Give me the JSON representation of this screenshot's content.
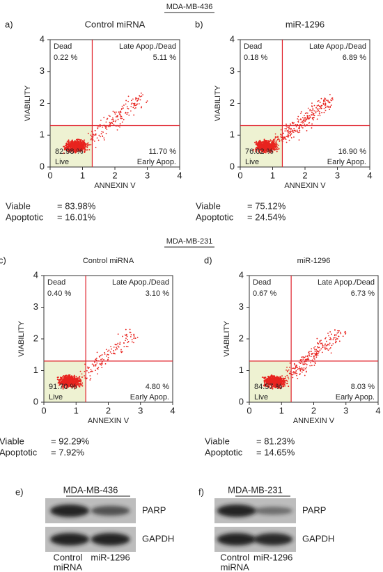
{
  "axis_ticks": [
    0,
    1,
    2,
    3,
    4
  ],
  "x_label": "ANNEXIN V",
  "y_label": "VIABILITY",
  "sections": [
    {
      "title": "MDA-MB-436",
      "panels": [
        {
          "letter": "a)",
          "title": "Control miRNA",
          "dead": "Dead",
          "dead_value": "0.22 %",
          "late": "Late Apop./Dead",
          "late_value": "5.11 %",
          "live": "Live",
          "live_value": "82.98 %",
          "early": "Early Apop.",
          "early_value": "11.70 %",
          "stats": [
            {
              "label": "Viable",
              "value": "= 83.98%"
            },
            {
              "label": "Apoptotic",
              "value": "= 16.01%"
            }
          ]
        },
        {
          "letter": "b)",
          "title": "miR-1296",
          "dead": "Dead",
          "dead_value": "0.18 %",
          "late": "Late Apop./Dead",
          "late_value": "6.89 %",
          "live": "Live",
          "live_value": "76.02 %",
          "early": "Early Apop.",
          "early_value": "16.90 %",
          "stats": [
            {
              "label": "Viable",
              "value": "= 75.12%"
            },
            {
              "label": "Apoptotic",
              "value": "= 24.54%"
            }
          ]
        }
      ]
    },
    {
      "title": "MDA-MB-231",
      "panels": [
        {
          "letter": "c)",
          "title": "Control miRNA",
          "dead": "Dead",
          "dead_value": "0.40 %",
          "late": "Late Apop./Dead",
          "late_value": "3.10 %",
          "live": "Live",
          "live_value": "91.70 %",
          "early": "Early Apop.",
          "early_value": "4.80 %",
          "stats": [
            {
              "label": "Viable",
              "value": "= 92.29%"
            },
            {
              "label": "Apoptotic",
              "value": "= 7.92%"
            }
          ]
        },
        {
          "letter": "d)",
          "title": "miR-1296",
          "dead": "Dead",
          "dead_value": "0.67 %",
          "late": "Late Apop./Dead",
          "late_value": "6.73 %",
          "live": "Live",
          "live_value": "84.57 %",
          "early": "Early Apop.",
          "early_value": "8.03 %",
          "stats": [
            {
              "label": "Viable",
              "value": "= 81.23%"
            },
            {
              "label": "Apoptotic",
              "value": "= 14.65%"
            }
          ]
        }
      ]
    }
  ],
  "blots": [
    {
      "letter": "e)",
      "title": "MDA-MB-436",
      "proteins": [
        "PARP",
        "GAPDH"
      ],
      "lanes": [
        [
          "Control",
          "miRNA"
        ],
        [
          "miR-1296"
        ]
      ]
    },
    {
      "letter": "f)",
      "title": "MDA-MB-231",
      "proteins": [
        "PARP",
        "GAPDH"
      ],
      "lanes": [
        [
          "Control",
          "miRNA"
        ],
        [
          "miR-1296"
        ]
      ]
    }
  ]
}
